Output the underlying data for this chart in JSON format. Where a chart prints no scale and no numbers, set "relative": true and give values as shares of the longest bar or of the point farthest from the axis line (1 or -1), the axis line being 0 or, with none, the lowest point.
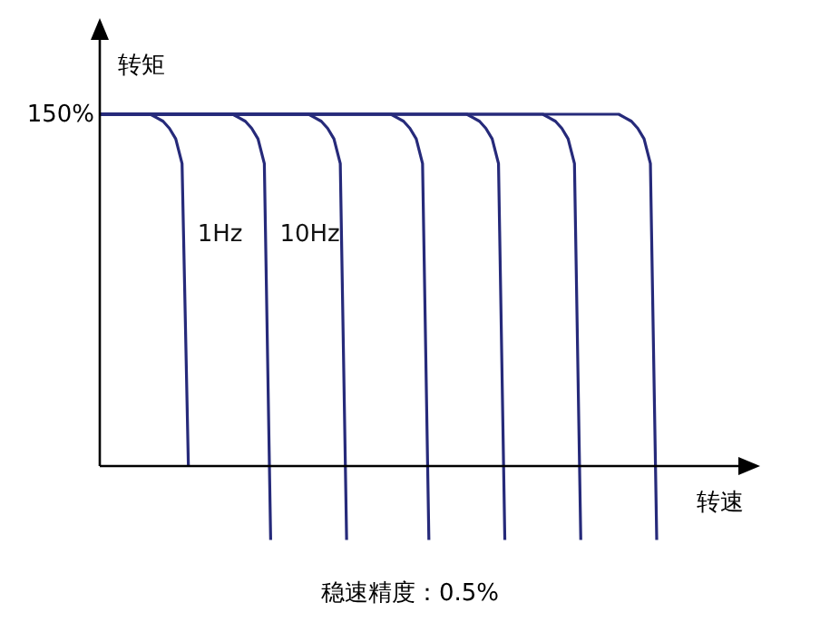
{
  "chart_data": {
    "type": "line",
    "relative": true,
    "ylabel": "转矩",
    "xlabel": "转速",
    "annotations": [
      "150%",
      "稳速精度：0.5%"
    ],
    "categories": [
      null,
      null,
      null,
      null,
      null,
      null,
      null,
      null,
      null,
      null,
      null,
      null,
      null,
      null,
      null,
      null,
      null,
      null,
      null,
      null,
      null,
      null,
      null,
      null,
      null,
      null,
      null,
      null,
      null,
      null,
      null,
      null,
      null,
      null,
      null,
      null,
      null,
      null,
      null,
      null,
      null,
      null,
      null,
      null,
      null,
      null,
      null,
      null,
      null,
      null,
      null,
      null,
      null,
      null,
      null,
      null,
      null,
      null,
      null,
      null,
      null,
      null,
      null,
      null,
      null,
      null,
      null,
      null,
      null,
      null,
      null,
      null,
      null,
      null,
      null,
      null,
      null,
      null,
      null,
      null,
      null,
      null,
      null,
      null,
      null,
      null,
      null,
      null,
      null
    ],
    "series": [
      {
        "name": "1Hz",
        "color": "#262a7a",
        "values": [
          1,
          1,
          1,
          1,
          1,
          1,
          1,
          1,
          1,
          0.99,
          0.98,
          0.96,
          0.93,
          0.86,
          0,
          null,
          null,
          null,
          null,
          null,
          null,
          null,
          null,
          null,
          null,
          null,
          null,
          null,
          null,
          null,
          null,
          null,
          null,
          null,
          null,
          null,
          null,
          null,
          null,
          null,
          null,
          null,
          null,
          null,
          null,
          null,
          null,
          null,
          null,
          null,
          null,
          null,
          null,
          null,
          null,
          null,
          null,
          null,
          null,
          null,
          null,
          null,
          null,
          null,
          null,
          null,
          null,
          null,
          null,
          null,
          null,
          null,
          null,
          null,
          null,
          null,
          null,
          null,
          null,
          null,
          null,
          null,
          null,
          null,
          null,
          null,
          null,
          null,
          null
        ]
      },
      {
        "name": "10Hz",
        "color": "#262a7a",
        "values": [
          1,
          1,
          1,
          1,
          1,
          1,
          1,
          1,
          1,
          1,
          1,
          1,
          1,
          1,
          1,
          1,
          1,
          1,
          1,
          1,
          1,
          1,
          0.99,
          0.98,
          0.96,
          0.93,
          0.86,
          -0.21,
          null,
          null,
          null,
          null,
          null,
          null,
          null,
          null,
          null,
          null,
          null,
          null,
          null,
          null,
          null,
          null,
          null,
          null,
          null,
          null,
          null,
          null,
          null,
          null,
          null,
          null,
          null,
          null,
          null,
          null,
          null,
          null,
          null,
          null,
          null,
          null,
          null,
          null,
          null,
          null,
          null,
          null,
          null,
          null,
          null,
          null,
          null,
          null,
          null,
          null,
          null,
          null,
          null,
          null,
          null,
          null,
          null,
          null,
          null,
          null,
          null
        ]
      },
      {
        "color": "#262a7a",
        "values": [
          1,
          1,
          1,
          1,
          1,
          1,
          1,
          1,
          1,
          1,
          1,
          1,
          1,
          1,
          1,
          1,
          1,
          1,
          1,
          1,
          1,
          1,
          1,
          1,
          1,
          1,
          1,
          1,
          1,
          1,
          1,
          1,
          1,
          1,
          0.99,
          0.98,
          0.96,
          0.93,
          0.86,
          -0.21,
          null,
          null,
          null,
          null,
          null,
          null,
          null,
          null,
          null,
          null,
          null,
          null,
          null,
          null,
          null,
          null,
          null,
          null,
          null,
          null,
          null,
          null,
          null,
          null,
          null,
          null,
          null,
          null,
          null,
          null,
          null,
          null,
          null,
          null,
          null,
          null,
          null,
          null,
          null,
          null,
          null,
          null,
          null,
          null,
          null,
          null,
          null,
          null,
          null
        ]
      },
      {
        "color": "#262a7a",
        "values": [
          1,
          1,
          1,
          1,
          1,
          1,
          1,
          1,
          1,
          1,
          1,
          1,
          1,
          1,
          1,
          1,
          1,
          1,
          1,
          1,
          1,
          1,
          1,
          1,
          1,
          1,
          1,
          1,
          1,
          1,
          1,
          1,
          1,
          1,
          1,
          1,
          1,
          1,
          1,
          1,
          1,
          1,
          1,
          1,
          1,
          1,
          1,
          0.99,
          0.98,
          0.96,
          0.93,
          0.86,
          -0.21,
          null,
          null,
          null,
          null,
          null,
          null,
          null,
          null,
          null,
          null,
          null,
          null,
          null,
          null,
          null,
          null,
          null,
          null,
          null,
          null,
          null,
          null,
          null,
          null,
          null,
          null,
          null,
          null,
          null,
          null,
          null,
          null,
          null,
          null,
          null,
          null
        ]
      },
      {
        "color": "#262a7a",
        "values": [
          1,
          1,
          1,
          1,
          1,
          1,
          1,
          1,
          1,
          1,
          1,
          1,
          1,
          1,
          1,
          1,
          1,
          1,
          1,
          1,
          1,
          1,
          1,
          1,
          1,
          1,
          1,
          1,
          1,
          1,
          1,
          1,
          1,
          1,
          1,
          1,
          1,
          1,
          1,
          1,
          1,
          1,
          1,
          1,
          1,
          1,
          1,
          1,
          1,
          1,
          1,
          1,
          1,
          1,
          1,
          1,
          1,
          1,
          1,
          0.99,
          0.98,
          0.96,
          0.93,
          0.86,
          -0.21,
          null,
          null,
          null,
          null,
          null,
          null,
          null,
          null,
          null,
          null,
          null,
          null,
          null,
          null,
          null,
          null,
          null,
          null,
          null,
          null,
          null,
          null,
          null,
          null
        ]
      },
      {
        "color": "#262a7a",
        "values": [
          1,
          1,
          1,
          1,
          1,
          1,
          1,
          1,
          1,
          1,
          1,
          1,
          1,
          1,
          1,
          1,
          1,
          1,
          1,
          1,
          1,
          1,
          1,
          1,
          1,
          1,
          1,
          1,
          1,
          1,
          1,
          1,
          1,
          1,
          1,
          1,
          1,
          1,
          1,
          1,
          1,
          1,
          1,
          1,
          1,
          1,
          1,
          1,
          1,
          1,
          1,
          1,
          1,
          1,
          1,
          1,
          1,
          1,
          1,
          1,
          1,
          1,
          1,
          1,
          1,
          1,
          1,
          1,
          1,
          1,
          1,
          0.99,
          0.98,
          0.96,
          0.93,
          0.86,
          -0.21,
          null,
          null,
          null,
          null,
          null,
          null,
          null,
          null,
          null,
          null,
          null,
          null
        ]
      },
      {
        "color": "#262a7a",
        "values": [
          1,
          1,
          1,
          1,
          1,
          1,
          1,
          1,
          1,
          1,
          1,
          1,
          1,
          1,
          1,
          1,
          1,
          1,
          1,
          1,
          1,
          1,
          1,
          1,
          1,
          1,
          1,
          1,
          1,
          1,
          1,
          1,
          1,
          1,
          1,
          1,
          1,
          1,
          1,
          1,
          1,
          1,
          1,
          1,
          1,
          1,
          1,
          1,
          1,
          1,
          1,
          1,
          1,
          1,
          1,
          1,
          1,
          1,
          1,
          1,
          1,
          1,
          1,
          1,
          1,
          1,
          1,
          1,
          1,
          1,
          1,
          1,
          1,
          1,
          1,
          1,
          1,
          1,
          1,
          1,
          1,
          1,
          1,
          0.99,
          0.98,
          0.96,
          0.93,
          0.86,
          -0.21
        ]
      }
    ]
  }
}
